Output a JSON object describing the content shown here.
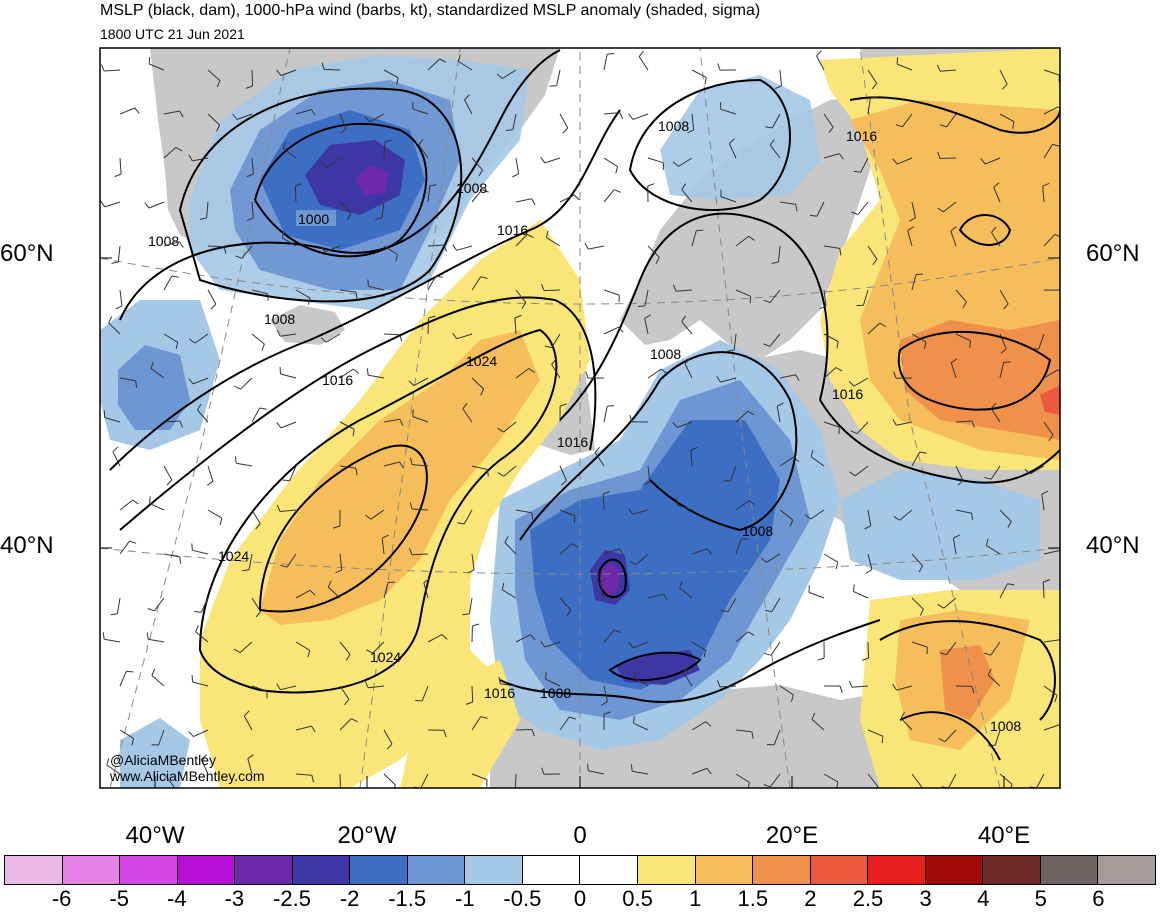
{
  "header": {
    "title": "MSLP (black, dam), 1000-hPa wind (barbs, kt), standardized MSLP anomaly (shaded, sigma)",
    "valid_time": "1800 UTC 21 Jun 2021"
  },
  "map": {
    "lat_labels": [
      "60°N",
      "40°N"
    ],
    "lon_labels": [
      "40°W",
      "20°W",
      "0",
      "20°E",
      "40°E"
    ],
    "isobar_labels": [
      "1000",
      "1008",
      "1008",
      "1008",
      "1008",
      "1008",
      "1008",
      "1008",
      "1016",
      "1016",
      "1016",
      "1016",
      "1016",
      "1024",
      "1024",
      "1024"
    ],
    "credit": [
      "@AliciaMBentley",
      "www.AliciaMBentley.com"
    ],
    "colors": {
      "land": "#c8c8c8",
      "ocean": "#ffffff",
      "isobar": "#000000",
      "coast": "#555555"
    }
  },
  "colorbar": {
    "labels": [
      "-6",
      "-5",
      "-4",
      "-3",
      "-2.5",
      "-2",
      "-1.5",
      "-1",
      "-0.5",
      "0",
      "0.5",
      "1",
      "1.5",
      "2",
      "2.5",
      "3",
      "4",
      "5",
      "6"
    ],
    "colors": [
      "#ebb9e6",
      "#e682e6",
      "#d246e6",
      "#b40fd2",
      "#6e28aa",
      "#3c37a5",
      "#3c6ec3",
      "#6e96d2",
      "#a5c8e6",
      "#ffffff",
      "#ffffff",
      "#fae678",
      "#f5be5a",
      "#f0914b",
      "#eb5a3c",
      "#e61e1e",
      "#a00a0a",
      "#6e2828",
      "#6e6464",
      "#a59b9b"
    ]
  }
}
